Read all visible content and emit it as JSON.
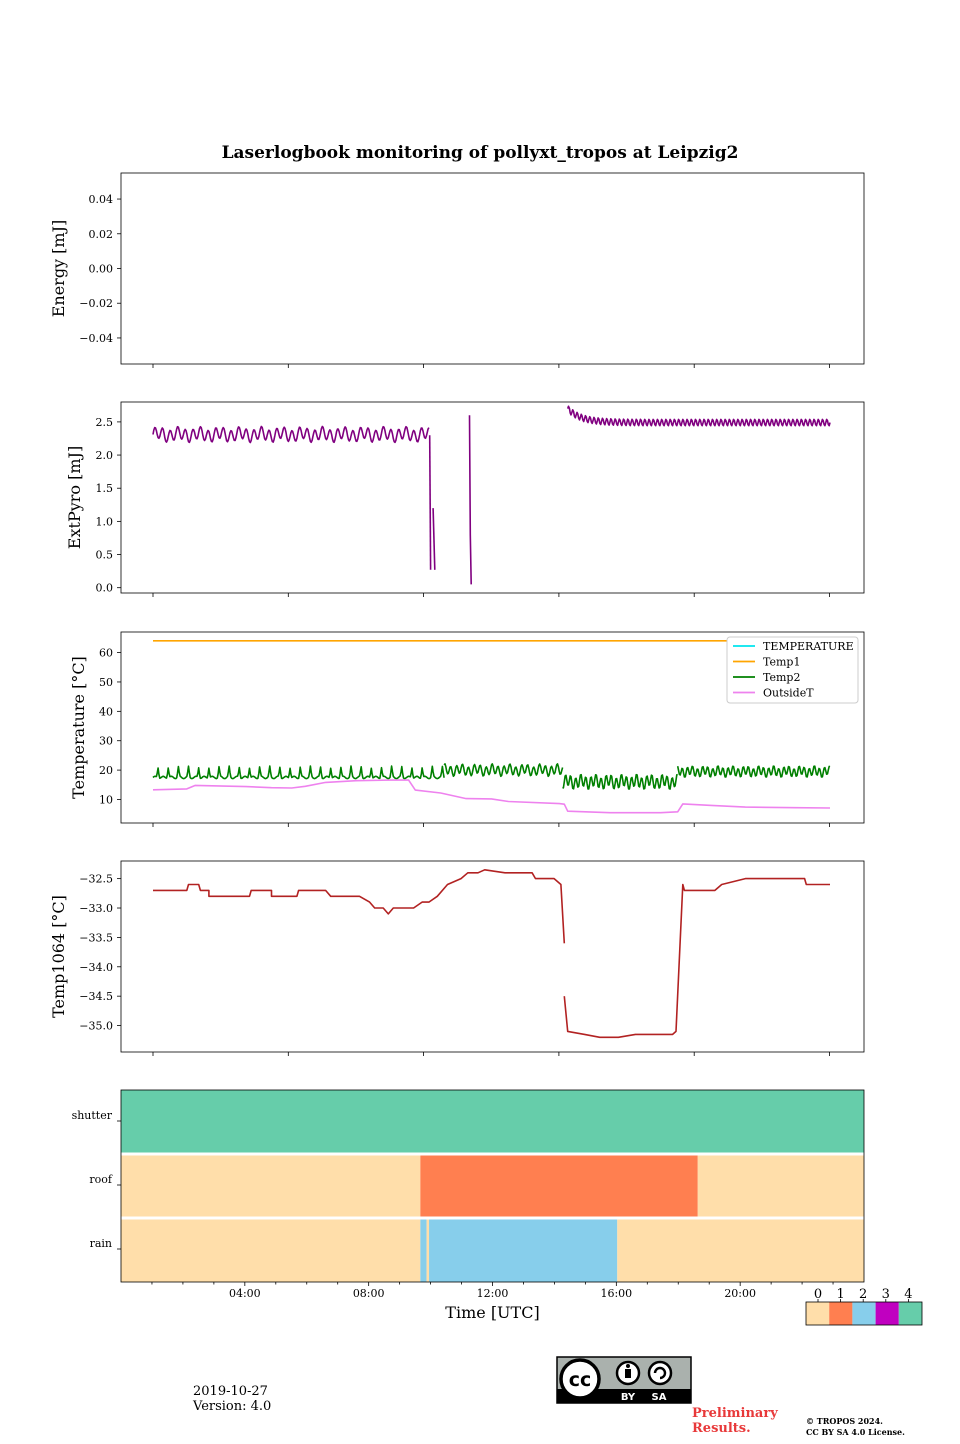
{
  "title": "Laserlogbook monitoring of pollyxt_tropos at Leipzig2",
  "colors": {
    "extpyro": "#800080",
    "temperature": "#00e5ee",
    "temp1": "#ffa500",
    "temp2": "#008000",
    "outsidet": "#ee82ee",
    "temp1064": "#b22222",
    "status_0": "#ffdeaa",
    "status_1": "#ff7f50",
    "status_2": "#87ceeb",
    "status_3": "#c000c0",
    "status_4": "#66cdaa",
    "preliminary": "#e8393a"
  },
  "chart_data": [
    {
      "id": "energy",
      "type": "line",
      "ylabel": "Energy [mJ]",
      "ylim": [
        -0.055,
        0.055
      ],
      "yticks": [
        0.04,
        0.02,
        0.0,
        -0.02,
        -0.04
      ],
      "ytick_labels": [
        "0.04",
        "0.02",
        "0.00",
        "−0.02",
        "−0.04"
      ],
      "series": []
    },
    {
      "id": "extpyro",
      "type": "line",
      "ylabel": "ExtPyro [mJ]",
      "ylim": [
        -0.08,
        2.8
      ],
      "yticks": [
        0.0,
        0.5,
        1.0,
        1.5,
        2.0,
        2.5
      ],
      "ytick_labels": [
        "0.0",
        "0.5",
        "1.0",
        "1.5",
        "2.0",
        "2.5"
      ],
      "series": [
        {
          "name": "ExtPyro",
          "color_key": "extpyro",
          "segments": [
            {
              "type": "osc",
              "t0": 0.0,
              "t1": 16.3,
              "base": 2.31,
              "amp": 0.09,
              "period": 0.45
            },
            {
              "type": "pts",
              "pts": [
                [
                  16.35,
                  2.3
                ],
                [
                  16.4,
                  0.27
                ]
              ]
            },
            {
              "type": "pts",
              "pts": [
                [
                  16.55,
                  1.2
                ],
                [
                  16.65,
                  0.27
                ]
              ]
            },
            {
              "type": "pts",
              "pts": [
                [
                  18.7,
                  2.6
                ],
                [
                  18.75,
                  0.8
                ],
                [
                  18.8,
                  0.05
                ]
              ]
            },
            {
              "type": "decay",
              "t0": 24.5,
              "t1": 40.0,
              "base": 2.49,
              "peak": 2.7,
              "tau": 0.8,
              "amp": 0.05,
              "period": 0.25
            }
          ]
        }
      ]
    },
    {
      "id": "temperature",
      "type": "line",
      "ylabel": "Temperature [°C]",
      "ylim": [
        2,
        67
      ],
      "yticks": [
        10,
        20,
        30,
        40,
        50,
        60
      ],
      "ytick_labels": [
        "10",
        "20",
        "30",
        "40",
        "50",
        "60"
      ],
      "legend": [
        "TEMPERATURE",
        "Temp1",
        "Temp2",
        "OutsideT"
      ],
      "legend_position": "upper right",
      "series": [
        {
          "name": "TEMPERATURE",
          "color_key": "temperature",
          "segments": []
        },
        {
          "name": "Temp1",
          "color_key": "temp1",
          "segments": [
            {
              "type": "pts",
              "pts": [
                [
                  0.0,
                  64
                ],
                [
                  40.0,
                  64
                ]
              ]
            }
          ]
        },
        {
          "name": "Temp2",
          "color_key": "temp2",
          "segments": [
            {
              "type": "spikes",
              "t0": 0.0,
              "t1": 17.2,
              "base": 17.5,
              "amp": 3.5,
              "period": 0.6
            },
            {
              "type": "osc",
              "t0": 17.2,
              "t1": 24.2,
              "base": 20.0,
              "amp": 1.6,
              "period": 0.35
            },
            {
              "type": "osc",
              "t0": 24.2,
              "t1": 31.0,
              "base": 16.0,
              "amp": 2.0,
              "period": 0.3
            },
            {
              "type": "osc",
              "t0": 31.0,
              "t1": 40.0,
              "base": 19.5,
              "amp": 1.5,
              "period": 0.3
            }
          ]
        },
        {
          "name": "OutsideT",
          "color_key": "outsidet",
          "segments": [
            {
              "type": "pts",
              "pts": [
                [
                  0.0,
                  13.3
                ],
                [
                  2.0,
                  13.6
                ],
                [
                  2.5,
                  14.8
                ],
                [
                  5.5,
                  14.4
                ],
                [
                  7.0,
                  14.0
                ],
                [
                  8.2,
                  13.9
                ],
                [
                  9.0,
                  14.5
                ],
                [
                  10.2,
                  15.8
                ],
                [
                  12.0,
                  16.4
                ],
                [
                  14.0,
                  16.6
                ],
                [
                  15.1,
                  16.6
                ],
                [
                  15.5,
                  13.2
                ],
                [
                  17.0,
                  12.2
                ],
                [
                  18.5,
                  10.3
                ],
                [
                  20.0,
                  10.2
                ],
                [
                  21.0,
                  9.3
                ],
                [
                  24.0,
                  8.6
                ],
                [
                  24.3,
                  8.4
                ],
                [
                  24.5,
                  6.0
                ],
                [
                  27.0,
                  5.5
                ],
                [
                  30.0,
                  5.5
                ],
                [
                  31.0,
                  5.8
                ],
                [
                  31.3,
                  8.5
                ],
                [
                  33.0,
                  8.0
                ],
                [
                  35.0,
                  7.4
                ],
                [
                  38.0,
                  7.2
                ],
                [
                  40.0,
                  7.1
                ]
              ]
            }
          ]
        }
      ]
    },
    {
      "id": "temp1064",
      "type": "line",
      "ylabel": "Temp1064 [°C]",
      "ylim": [
        -35.45,
        -32.2
      ],
      "yticks": [
        -32.5,
        -33.0,
        -33.5,
        -34.0,
        -34.5,
        -35.0
      ],
      "ytick_labels": [
        "−32.5",
        "−33.0",
        "−33.5",
        "−34.0",
        "−34.5",
        "−35.0"
      ],
      "series": [
        {
          "name": "Temp1064",
          "color_key": "temp1064",
          "segments": [
            {
              "type": "pts",
              "pts": [
                [
                  0.0,
                  -32.7
                ],
                [
                  2.0,
                  -32.7
                ],
                [
                  2.1,
                  -32.6
                ],
                [
                  2.7,
                  -32.6
                ],
                [
                  2.8,
                  -32.7
                ],
                [
                  3.3,
                  -32.7
                ],
                [
                  3.3,
                  -32.8
                ],
                [
                  5.7,
                  -32.8
                ],
                [
                  5.8,
                  -32.7
                ],
                [
                  7.0,
                  -32.7
                ],
                [
                  7.0,
                  -32.8
                ],
                [
                  8.5,
                  -32.8
                ],
                [
                  8.6,
                  -32.7
                ],
                [
                  10.2,
                  -32.7
                ],
                [
                  10.5,
                  -32.8
                ],
                [
                  12.2,
                  -32.8
                ],
                [
                  12.8,
                  -32.9
                ],
                [
                  13.1,
                  -33.0
                ],
                [
                  13.6,
                  -33.0
                ],
                [
                  13.9,
                  -33.1
                ],
                [
                  14.2,
                  -33.0
                ],
                [
                  15.4,
                  -33.0
                ],
                [
                  15.9,
                  -32.9
                ],
                [
                  16.3,
                  -32.9
                ],
                [
                  16.8,
                  -32.8
                ],
                [
                  17.4,
                  -32.6
                ],
                [
                  18.2,
                  -32.5
                ],
                [
                  18.6,
                  -32.4
                ],
                [
                  19.2,
                  -32.4
                ],
                [
                  19.6,
                  -32.35
                ],
                [
                  20.8,
                  -32.4
                ],
                [
                  22.4,
                  -32.4
                ],
                [
                  22.6,
                  -32.5
                ],
                [
                  23.7,
                  -32.5
                ],
                [
                  24.1,
                  -32.6
                ],
                [
                  24.3,
                  -33.6
                ]
              ]
            },
            {
              "type": "pts",
              "pts": [
                [
                  24.3,
                  -34.5
                ],
                [
                  24.5,
                  -35.1
                ],
                [
                  25.5,
                  -35.15
                ],
                [
                  26.4,
                  -35.2
                ],
                [
                  27.5,
                  -35.2
                ],
                [
                  28.5,
                  -35.15
                ],
                [
                  30.7,
                  -35.15
                ],
                [
                  30.9,
                  -35.1
                ],
                [
                  31.3,
                  -32.6
                ],
                [
                  31.4,
                  -32.7
                ],
                [
                  33.2,
                  -32.7
                ],
                [
                  33.6,
                  -32.6
                ],
                [
                  35.0,
                  -32.5
                ],
                [
                  38.5,
                  -32.5
                ],
                [
                  38.6,
                  -32.6
                ],
                [
                  40.0,
                  -32.6
                ]
              ]
            }
          ]
        }
      ]
    },
    {
      "id": "status",
      "type": "heatmap",
      "rows": [
        "shutter",
        "roof",
        "rain"
      ],
      "xlim": [
        0.0,
        24.0
      ],
      "xticks": [
        4,
        8,
        12,
        16,
        20
      ],
      "xtick_labels": [
        "04:00",
        "08:00",
        "12:00",
        "16:00",
        "20:00"
      ],
      "xlabel": "Time [UTC]",
      "cells": [
        {
          "row": "shutter",
          "t0": 0.0,
          "t1": 24.0,
          "value": 4
        },
        {
          "row": "roof",
          "t0": 0.0,
          "t1": 9.67,
          "value": 0
        },
        {
          "row": "roof",
          "t0": 9.67,
          "t1": 18.63,
          "value": 1
        },
        {
          "row": "roof",
          "t0": 18.63,
          "t1": 24.0,
          "value": 0
        },
        {
          "row": "rain",
          "t0": 0.0,
          "t1": 9.67,
          "value": 0
        },
        {
          "row": "rain",
          "t0": 9.67,
          "t1": 9.87,
          "value": 2
        },
        {
          "row": "rain",
          "t0": 9.87,
          "t1": 9.95,
          "value": 0
        },
        {
          "row": "rain",
          "t0": 9.95,
          "t1": 16.03,
          "value": 2
        },
        {
          "row": "rain",
          "t0": 16.03,
          "t1": 24.0,
          "value": 0
        }
      ],
      "colorbar": {
        "values": [
          0,
          1,
          2,
          3,
          4
        ],
        "labels": [
          "0",
          "1",
          "2",
          "3",
          "4"
        ]
      }
    }
  ],
  "footer": {
    "date": "2019-10-27",
    "version": "Version: 4.0",
    "license_badge": {
      "cc": "cc",
      "by": "BY",
      "sa": "SA"
    },
    "preliminary_line1": "Preliminary",
    "preliminary_line2": "Results.",
    "copyright_line1": "© TROPOS 2024.",
    "copyright_line2": "CC BY SA 4.0 License."
  }
}
